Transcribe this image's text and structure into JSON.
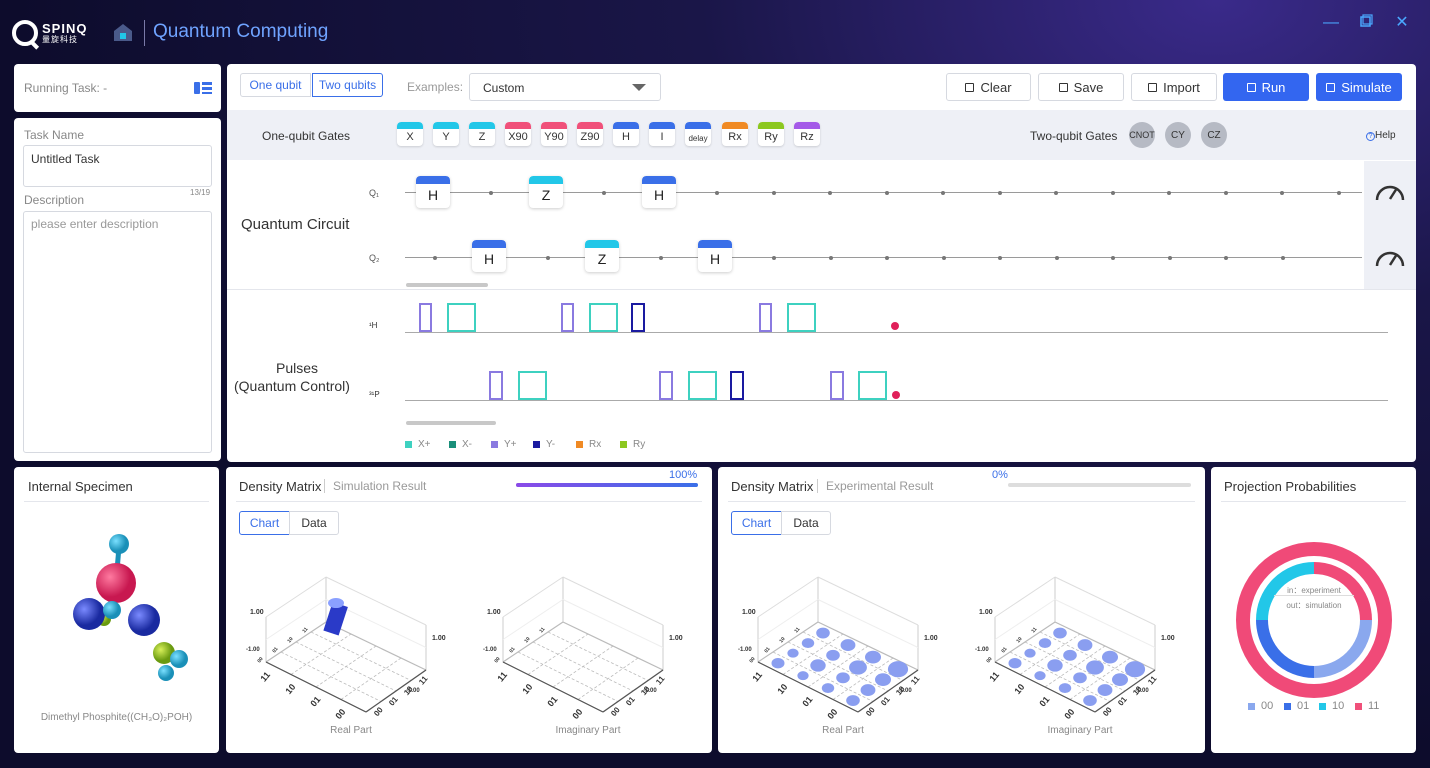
{
  "app": {
    "logo_text": "SPINQ",
    "logo_sub": "量旋科技",
    "title": "Quantum Computing"
  },
  "task": {
    "running_label": "Running Task: -",
    "name_label": "Task Name",
    "name_value": "Untitled Task",
    "name_count": "13/19",
    "desc_label": "Description",
    "desc_placeholder": "please enter description"
  },
  "toolbar": {
    "tab_one": "One qubit",
    "tab_two": "Two qubits",
    "examples_label": "Examples:",
    "examples_value": "Custom",
    "clear": "Clear",
    "save": "Save",
    "import": "Import",
    "run": "Run",
    "simulate": "Simulate"
  },
  "gates": {
    "one_label": "One-qubit Gates",
    "two_label": "Two-qubit Gates",
    "help": "Help",
    "one": [
      {
        "label": "X",
        "color": "#22c7e8"
      },
      {
        "label": "Y",
        "color": "#22c7e8"
      },
      {
        "label": "Z",
        "color": "#22c7e8"
      },
      {
        "label": "X90",
        "color": "#f0507a"
      },
      {
        "label": "Y90",
        "color": "#f0507a"
      },
      {
        "label": "Z90",
        "color": "#f0507a"
      },
      {
        "label": "H",
        "color": "#3a6fe8"
      },
      {
        "label": "I",
        "color": "#3a6fe8"
      },
      {
        "label": "delay",
        "color": "#3a6fe8"
      },
      {
        "label": "Rx",
        "color": "#f08a24"
      },
      {
        "label": "Ry",
        "color": "#8cc820"
      },
      {
        "label": "Rz",
        "color": "#a45ae8"
      }
    ],
    "two": [
      "CNOT",
      "CY",
      "CZ"
    ]
  },
  "circuit": {
    "label": "Quantum Circuit",
    "q1": "Q₁",
    "q2": "Q₂",
    "q1_gates": [
      "H",
      "Z",
      "H"
    ],
    "q2_gates": [
      "H",
      "Z",
      "H"
    ]
  },
  "pulses": {
    "label_line1": "Pulses",
    "label_line2": "(Quantum Control)",
    "ch1": "¹H",
    "ch2": "³¹P",
    "legend": [
      {
        "label": "X+",
        "color": "#3ed1c0"
      },
      {
        "label": "X-",
        "color": "#1a8f7a"
      },
      {
        "label": "Y+",
        "color": "#8a7ae0"
      },
      {
        "label": "Y-",
        "color": "#1a1aa0"
      },
      {
        "label": "Rx",
        "color": "#f08a24"
      },
      {
        "label": "Ry",
        "color": "#8cc820"
      }
    ]
  },
  "specimen": {
    "title": "Internal Specimen",
    "caption": "Dimethyl Phosphite((CH₃O)₂POH)"
  },
  "dm_sim": {
    "title": "Density Matrix",
    "subtitle": "Simulation Result",
    "progress_label": "100%",
    "progress": 1.0,
    "tab_chart": "Chart",
    "tab_data": "Data",
    "real": "Real Part",
    "imag": "Imaginary Part",
    "axis_top": "1.00",
    "axis_right": "1.00",
    "axis_neg1": "-1.00",
    "axis_neg2": "-1.00",
    "ticks": [
      "00",
      "01",
      "10",
      "11"
    ]
  },
  "dm_exp": {
    "title": "Density Matrix",
    "subtitle": "Experimental Result",
    "progress_label": "0%",
    "progress": 0.0,
    "tab_chart": "Chart",
    "tab_data": "Data",
    "real": "Real Part",
    "imag": "Imaginary Part",
    "axis_top": "1.00",
    "axis_right": "1.00",
    "axis_neg1": "-1.00",
    "axis_neg2": "-1.00",
    "ticks": [
      "00",
      "01",
      "10",
      "11"
    ]
  },
  "projection": {
    "title": "Projection Probabilities",
    "in_label": "in：experiment",
    "out_label": "out：simulation",
    "legend": [
      {
        "label": "00",
        "color": "#8aa8ee"
      },
      {
        "label": "01",
        "color": "#3a6fe8"
      },
      {
        "label": "10",
        "color": "#22c7e8"
      },
      {
        "label": "11",
        "color": "#f0507a"
      }
    ]
  }
}
